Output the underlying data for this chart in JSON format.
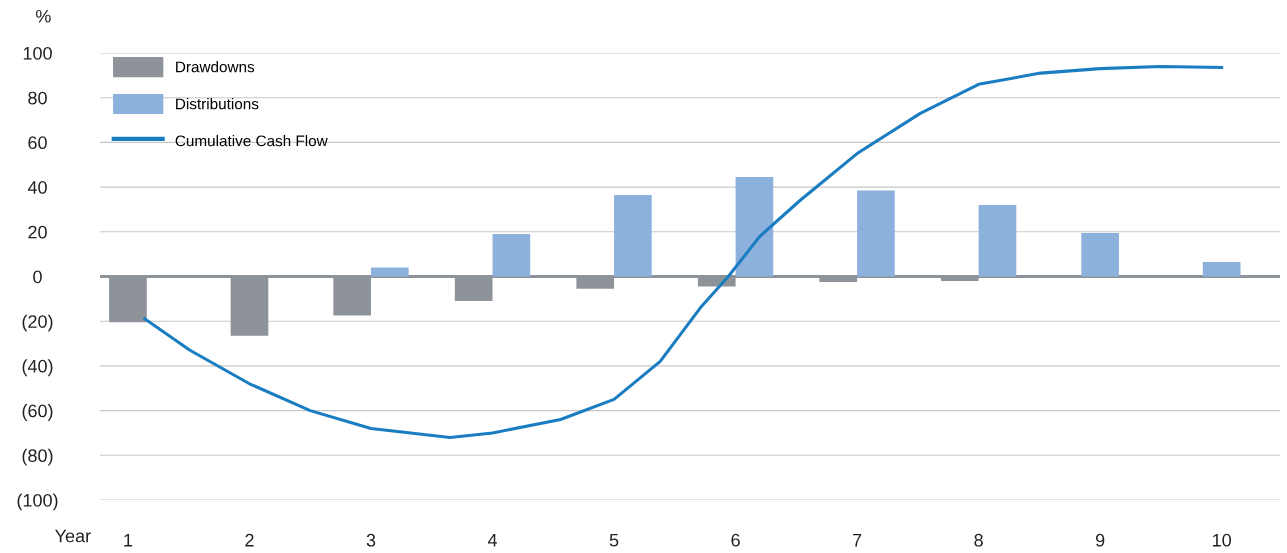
{
  "chart_data": {
    "type": "bar",
    "ylabel": "%",
    "xlabel": "Year",
    "x": [
      1,
      2,
      3,
      4,
      5,
      6,
      7,
      8,
      9,
      10
    ],
    "xlim": [
      0.77,
      10.48
    ],
    "xticks": [
      1,
      2,
      3,
      4,
      5,
      6,
      7,
      8,
      9,
      10
    ],
    "ylim": [
      -100,
      100
    ],
    "yticks": [
      {
        "value": -100,
        "label": "(100)"
      },
      {
        "value": -80,
        "label": "(80)"
      },
      {
        "value": -60,
        "label": "(60)"
      },
      {
        "value": -40,
        "label": "(40)"
      },
      {
        "value": -20,
        "label": "(20)"
      },
      0,
      20,
      40,
      60,
      80,
      100
    ],
    "grid": "y",
    "legend": "top left",
    "series": [
      {
        "name": "Drawdowns",
        "color": "#8e9399",
        "values": [
          -20.5,
          -26.5,
          -17.5,
          -11,
          -5.5,
          -4.5,
          -2.5,
          -2,
          null,
          null
        ]
      },
      {
        "name": "Distributions",
        "color": "#8db1dd",
        "values": [
          null,
          null,
          4,
          19,
          36.5,
          44.5,
          38.5,
          32,
          19.5,
          6.5
        ]
      },
      {
        "name": "Cumulative Cash Flow",
        "type": "line",
        "color": "#1a7dc2",
        "marker": "none",
        "line_style": "solid",
        "x": [
          1.14,
          1.51,
          2.0,
          2.5,
          3.0,
          3.65,
          4.0,
          4.56,
          5.0,
          5.38,
          5.71,
          5.94,
          6.2,
          6.53,
          7.0,
          7.52,
          8.0,
          8.51,
          9.0,
          9.49,
          10.0
        ],
        "values": [
          -19,
          -33,
          -48,
          -60,
          -68,
          -72,
          -70,
          -64,
          -55,
          -38,
          -14,
          0,
          18,
          34,
          55,
          73,
          86,
          91,
          93,
          94,
          93.5
        ]
      }
    ]
  }
}
